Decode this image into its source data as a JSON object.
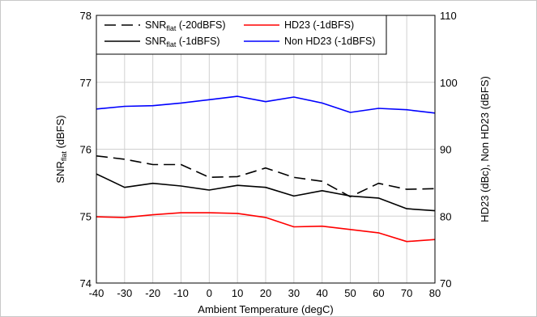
{
  "chart_data": {
    "type": "line",
    "title": "",
    "xlabel": "Ambient Temperature (degC)",
    "ylabel_left": {
      "base": "SNR",
      "sub": "flat",
      "rest": " (dBFS)"
    },
    "ylabel_right": "HD23 (dBc), Non HD23 (dBFS)",
    "x": [
      -40,
      -30,
      -20,
      -10,
      0,
      10,
      20,
      30,
      40,
      50,
      60,
      70,
      80
    ],
    "xlim": [
      -40,
      80
    ],
    "ylim_left": [
      74,
      78
    ],
    "ylim_right": [
      70,
      110
    ],
    "x_ticks": [
      -40,
      -30,
      -20,
      -10,
      0,
      10,
      20,
      30,
      40,
      50,
      60,
      70,
      80
    ],
    "y_ticks_left": [
      74,
      75,
      76,
      77,
      78
    ],
    "y_ticks_right": [
      70,
      80,
      90,
      100,
      110
    ],
    "grid": true,
    "legend_position": "top-left",
    "series": [
      {
        "name": "SNR (-20dBFS)",
        "legend": {
          "base": "SNR",
          "sub": "flat",
          "rest": " (-20dBFS)"
        },
        "axis": "left",
        "color": "#000000",
        "style": "dashed",
        "values": [
          75.9,
          75.85,
          75.77,
          75.77,
          75.58,
          75.59,
          75.72,
          75.58,
          75.52,
          75.29,
          75.49,
          75.4,
          75.41
        ]
      },
      {
        "name": "SNR (-1dBFS)",
        "legend": {
          "base": "SNR",
          "sub": "flat",
          "rest": " (-1dBFS)"
        },
        "axis": "left",
        "color": "#000000",
        "style": "solid",
        "values": [
          75.63,
          75.43,
          75.49,
          75.45,
          75.39,
          75.46,
          75.43,
          75.3,
          75.38,
          75.3,
          75.27,
          75.11,
          75.08
        ]
      },
      {
        "name": "HD23 (-1dBFS)",
        "legend": {
          "base": "HD23 (-1dBFS)",
          "sub": "",
          "rest": ""
        },
        "axis": "right",
        "color": "#ff0000",
        "style": "solid",
        "values": [
          79.9,
          79.8,
          80.2,
          80.5,
          80.5,
          80.4,
          79.8,
          78.4,
          78.5,
          78.0,
          77.5,
          76.2,
          76.5
        ]
      },
      {
        "name": "Non HD23 (-1dBFS)",
        "legend": {
          "base": "Non HD23 (-1dBFS)",
          "sub": "",
          "rest": ""
        },
        "axis": "right",
        "color": "#0000ff",
        "style": "solid",
        "values": [
          96.0,
          96.4,
          96.5,
          96.9,
          97.4,
          97.9,
          97.1,
          97.8,
          96.9,
          95.5,
          96.1,
          95.9,
          95.4
        ]
      }
    ]
  }
}
